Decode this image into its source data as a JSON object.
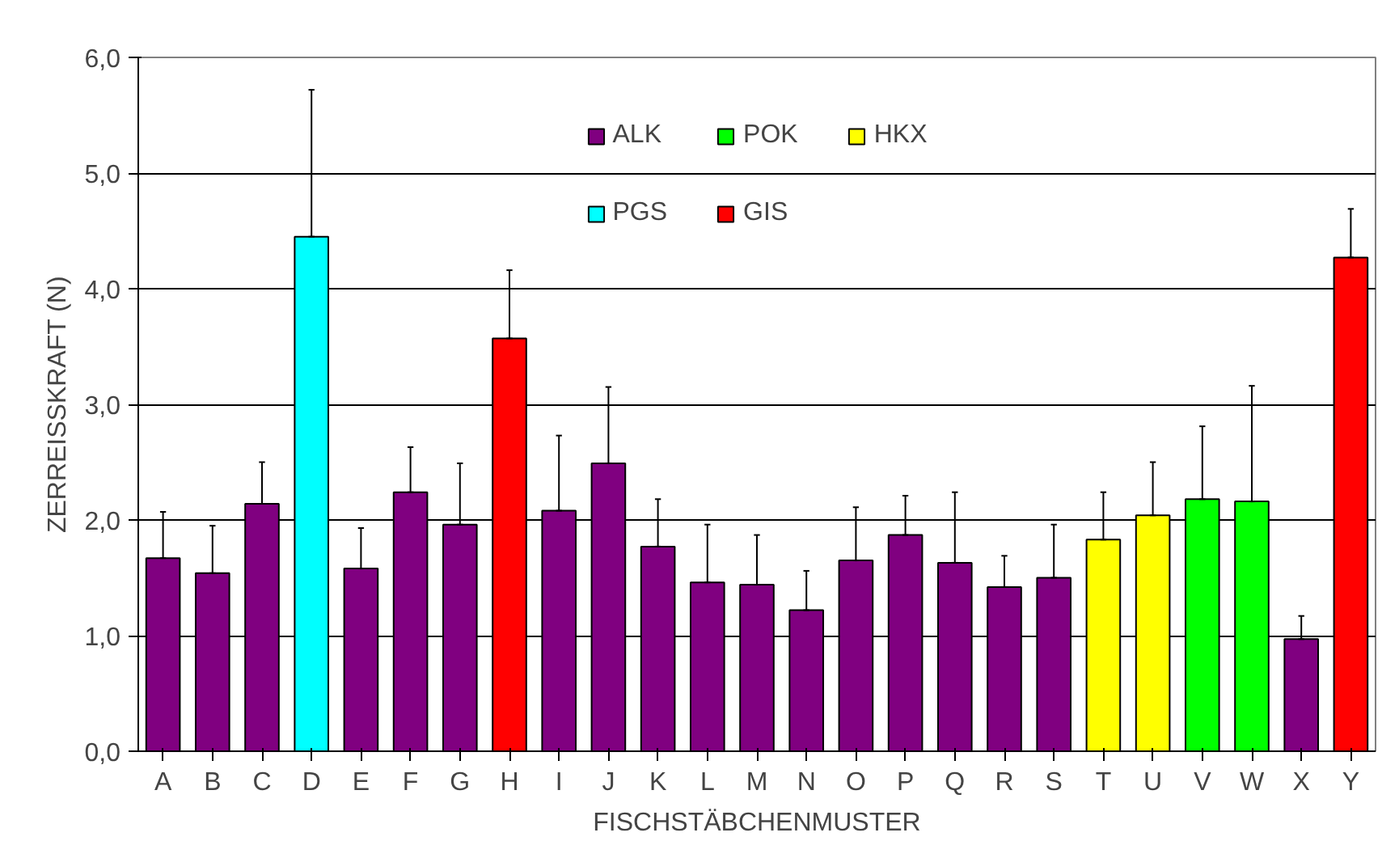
{
  "chart_data": {
    "type": "bar",
    "xlabel": "FISCHSTÄBCHENMUSTER",
    "ylabel": "ZERREISSKRAFT (N)",
    "categories": [
      "A",
      "B",
      "C",
      "D",
      "E",
      "F",
      "G",
      "H",
      "I",
      "J",
      "K",
      "L",
      "M",
      "N",
      "O",
      "P",
      "Q",
      "R",
      "S",
      "T",
      "U",
      "V",
      "W",
      "X",
      "Y"
    ],
    "series": [
      {
        "name": "ALK",
        "color": "#800080",
        "values": [
          1.67,
          1.54,
          2.14,
          null,
          1.58,
          2.24,
          1.96,
          null,
          2.08,
          2.49,
          1.77,
          1.46,
          1.44,
          1.22,
          1.65,
          1.87,
          1.63,
          1.42,
          1.5,
          null,
          null,
          null,
          null,
          0.97,
          null
        ],
        "errors": [
          [
            1.67,
            2.07
          ],
          [
            1.54,
            1.95
          ],
          [
            2.14,
            2.5
          ],
          null,
          [
            1.58,
            1.93
          ],
          [
            2.24,
            2.63
          ],
          [
            1.96,
            2.49
          ],
          null,
          [
            2.08,
            2.73
          ],
          [
            2.49,
            3.15
          ],
          [
            1.77,
            2.18
          ],
          [
            1.46,
            1.96
          ],
          [
            1.44,
            1.87
          ],
          [
            1.22,
            1.56
          ],
          [
            1.65,
            2.11
          ],
          [
            1.87,
            2.21
          ],
          [
            1.63,
            2.24
          ],
          [
            1.42,
            1.69
          ],
          [
            1.5,
            1.96
          ],
          null,
          null,
          null,
          null,
          [
            0.97,
            1.17
          ],
          null
        ]
      },
      {
        "name": "POK",
        "color": "#00ff00",
        "values": [
          null,
          null,
          null,
          null,
          null,
          null,
          null,
          null,
          null,
          null,
          null,
          null,
          null,
          null,
          null,
          null,
          null,
          null,
          null,
          null,
          null,
          2.18,
          2.16,
          null,
          null
        ],
        "errors": [
          null,
          null,
          null,
          null,
          null,
          null,
          null,
          null,
          null,
          null,
          null,
          null,
          null,
          null,
          null,
          null,
          null,
          null,
          null,
          null,
          null,
          [
            2.18,
            2.81
          ],
          [
            2.16,
            3.16
          ],
          null,
          null
        ]
      },
      {
        "name": "HKX",
        "color": "#ffff00",
        "values": [
          null,
          null,
          null,
          null,
          null,
          null,
          null,
          null,
          null,
          null,
          null,
          null,
          null,
          null,
          null,
          null,
          null,
          null,
          null,
          1.83,
          2.04,
          null,
          null,
          null,
          null
        ],
        "errors": [
          null,
          null,
          null,
          null,
          null,
          null,
          null,
          null,
          null,
          null,
          null,
          null,
          null,
          null,
          null,
          null,
          null,
          null,
          null,
          [
            1.83,
            2.24
          ],
          [
            2.04,
            2.5
          ],
          null,
          null,
          null,
          null
        ]
      },
      {
        "name": "PGS",
        "color": "#00ffff",
        "values": [
          null,
          null,
          null,
          4.45,
          null,
          null,
          null,
          null,
          null,
          null,
          null,
          null,
          null,
          null,
          null,
          null,
          null,
          null,
          null,
          null,
          null,
          null,
          null,
          null,
          null
        ],
        "errors": [
          null,
          null,
          null,
          [
            4.45,
            5.72
          ],
          null,
          null,
          null,
          null,
          null,
          null,
          null,
          null,
          null,
          null,
          null,
          null,
          null,
          null,
          null,
          null,
          null,
          null,
          null,
          null,
          null
        ]
      },
      {
        "name": "GIS",
        "color": "#ff0000",
        "values": [
          null,
          null,
          null,
          null,
          null,
          null,
          null,
          3.57,
          null,
          null,
          null,
          null,
          null,
          null,
          null,
          null,
          null,
          null,
          null,
          null,
          null,
          null,
          null,
          null,
          4.27
        ],
        "errors": [
          null,
          null,
          null,
          null,
          null,
          null,
          null,
          [
            3.57,
            4.16
          ],
          null,
          null,
          null,
          null,
          null,
          null,
          null,
          null,
          null,
          null,
          null,
          null,
          null,
          null,
          null,
          null,
          [
            4.27,
            4.69
          ]
        ]
      }
    ],
    "ylim": [
      0,
      6
    ],
    "yticks": [
      {
        "value": 0,
        "label": "0,0"
      },
      {
        "value": 1,
        "label": "1,0"
      },
      {
        "value": 2,
        "label": "2,0"
      },
      {
        "value": 3,
        "label": "3,0"
      },
      {
        "value": 4,
        "label": "4,0"
      },
      {
        "value": 5,
        "label": "5,0"
      },
      {
        "value": 6,
        "label": "6,0"
      }
    ],
    "grid": "y",
    "legend": "top"
  }
}
